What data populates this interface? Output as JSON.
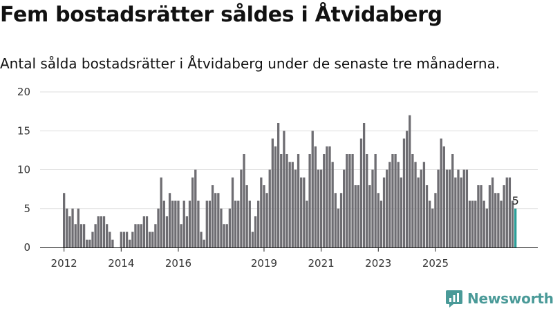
{
  "title": "Fem bostadsrätter såldes i Åtvidaberg",
  "subtitle": "Antal sålda bostadsrätter i Åtvidaberg under de senaste tre månaderna.",
  "brand": "Newsworthy",
  "colors": {
    "bar": "#6e6d72",
    "highlight": "#2a9d97",
    "grid": "#dddddd",
    "brand": "#4a9a98"
  },
  "chart_data": {
    "type": "bar",
    "ylim": [
      0,
      20
    ],
    "yticks": [
      0,
      5,
      10,
      15,
      20
    ],
    "xticks": [
      {
        "label": "2012",
        "index": 0
      },
      {
        "label": "2014",
        "index": 20
      },
      {
        "label": "2016",
        "index": 40
      },
      {
        "label": "2019",
        "index": 70
      },
      {
        "label": "2021",
        "index": 90
      },
      {
        "label": "2023",
        "index": 110
      },
      {
        "label": "2025",
        "index": 130
      }
    ],
    "values": [
      7,
      5,
      4,
      5,
      3,
      5,
      3,
      3,
      1,
      1,
      2,
      3,
      4,
      4,
      4,
      3,
      2,
      1,
      0,
      0,
      2,
      2,
      2,
      1,
      2,
      3,
      3,
      3,
      4,
      4,
      2,
      2,
      3,
      5,
      9,
      6,
      4,
      7,
      6,
      6,
      6,
      3,
      6,
      4,
      6,
      9,
      10,
      6,
      2,
      1,
      6,
      6,
      8,
      7,
      7,
      5,
      3,
      3,
      5,
      9,
      6,
      6,
      10,
      12,
      8,
      6,
      2,
      4,
      6,
      9,
      8,
      7,
      10,
      14,
      13,
      16,
      12,
      15,
      12,
      11,
      11,
      10,
      12,
      9,
      9,
      6,
      12,
      15,
      13,
      10,
      10,
      12,
      13,
      13,
      11,
      7,
      5,
      7,
      10,
      12,
      12,
      12,
      8,
      8,
      14,
      16,
      12,
      8,
      10,
      12,
      7,
      6,
      9,
      10,
      11,
      12,
      12,
      11,
      9,
      14,
      15,
      17,
      12,
      11,
      9,
      10,
      11,
      8,
      6,
      5,
      7,
      10,
      14,
      13,
      10,
      10,
      12,
      9,
      10,
      9,
      10,
      10,
      6,
      6,
      6,
      8,
      8,
      6,
      5,
      8,
      9,
      7,
      7,
      6,
      8,
      9,
      9,
      6,
      5
    ],
    "highlight_last": true,
    "last_label": "5"
  }
}
